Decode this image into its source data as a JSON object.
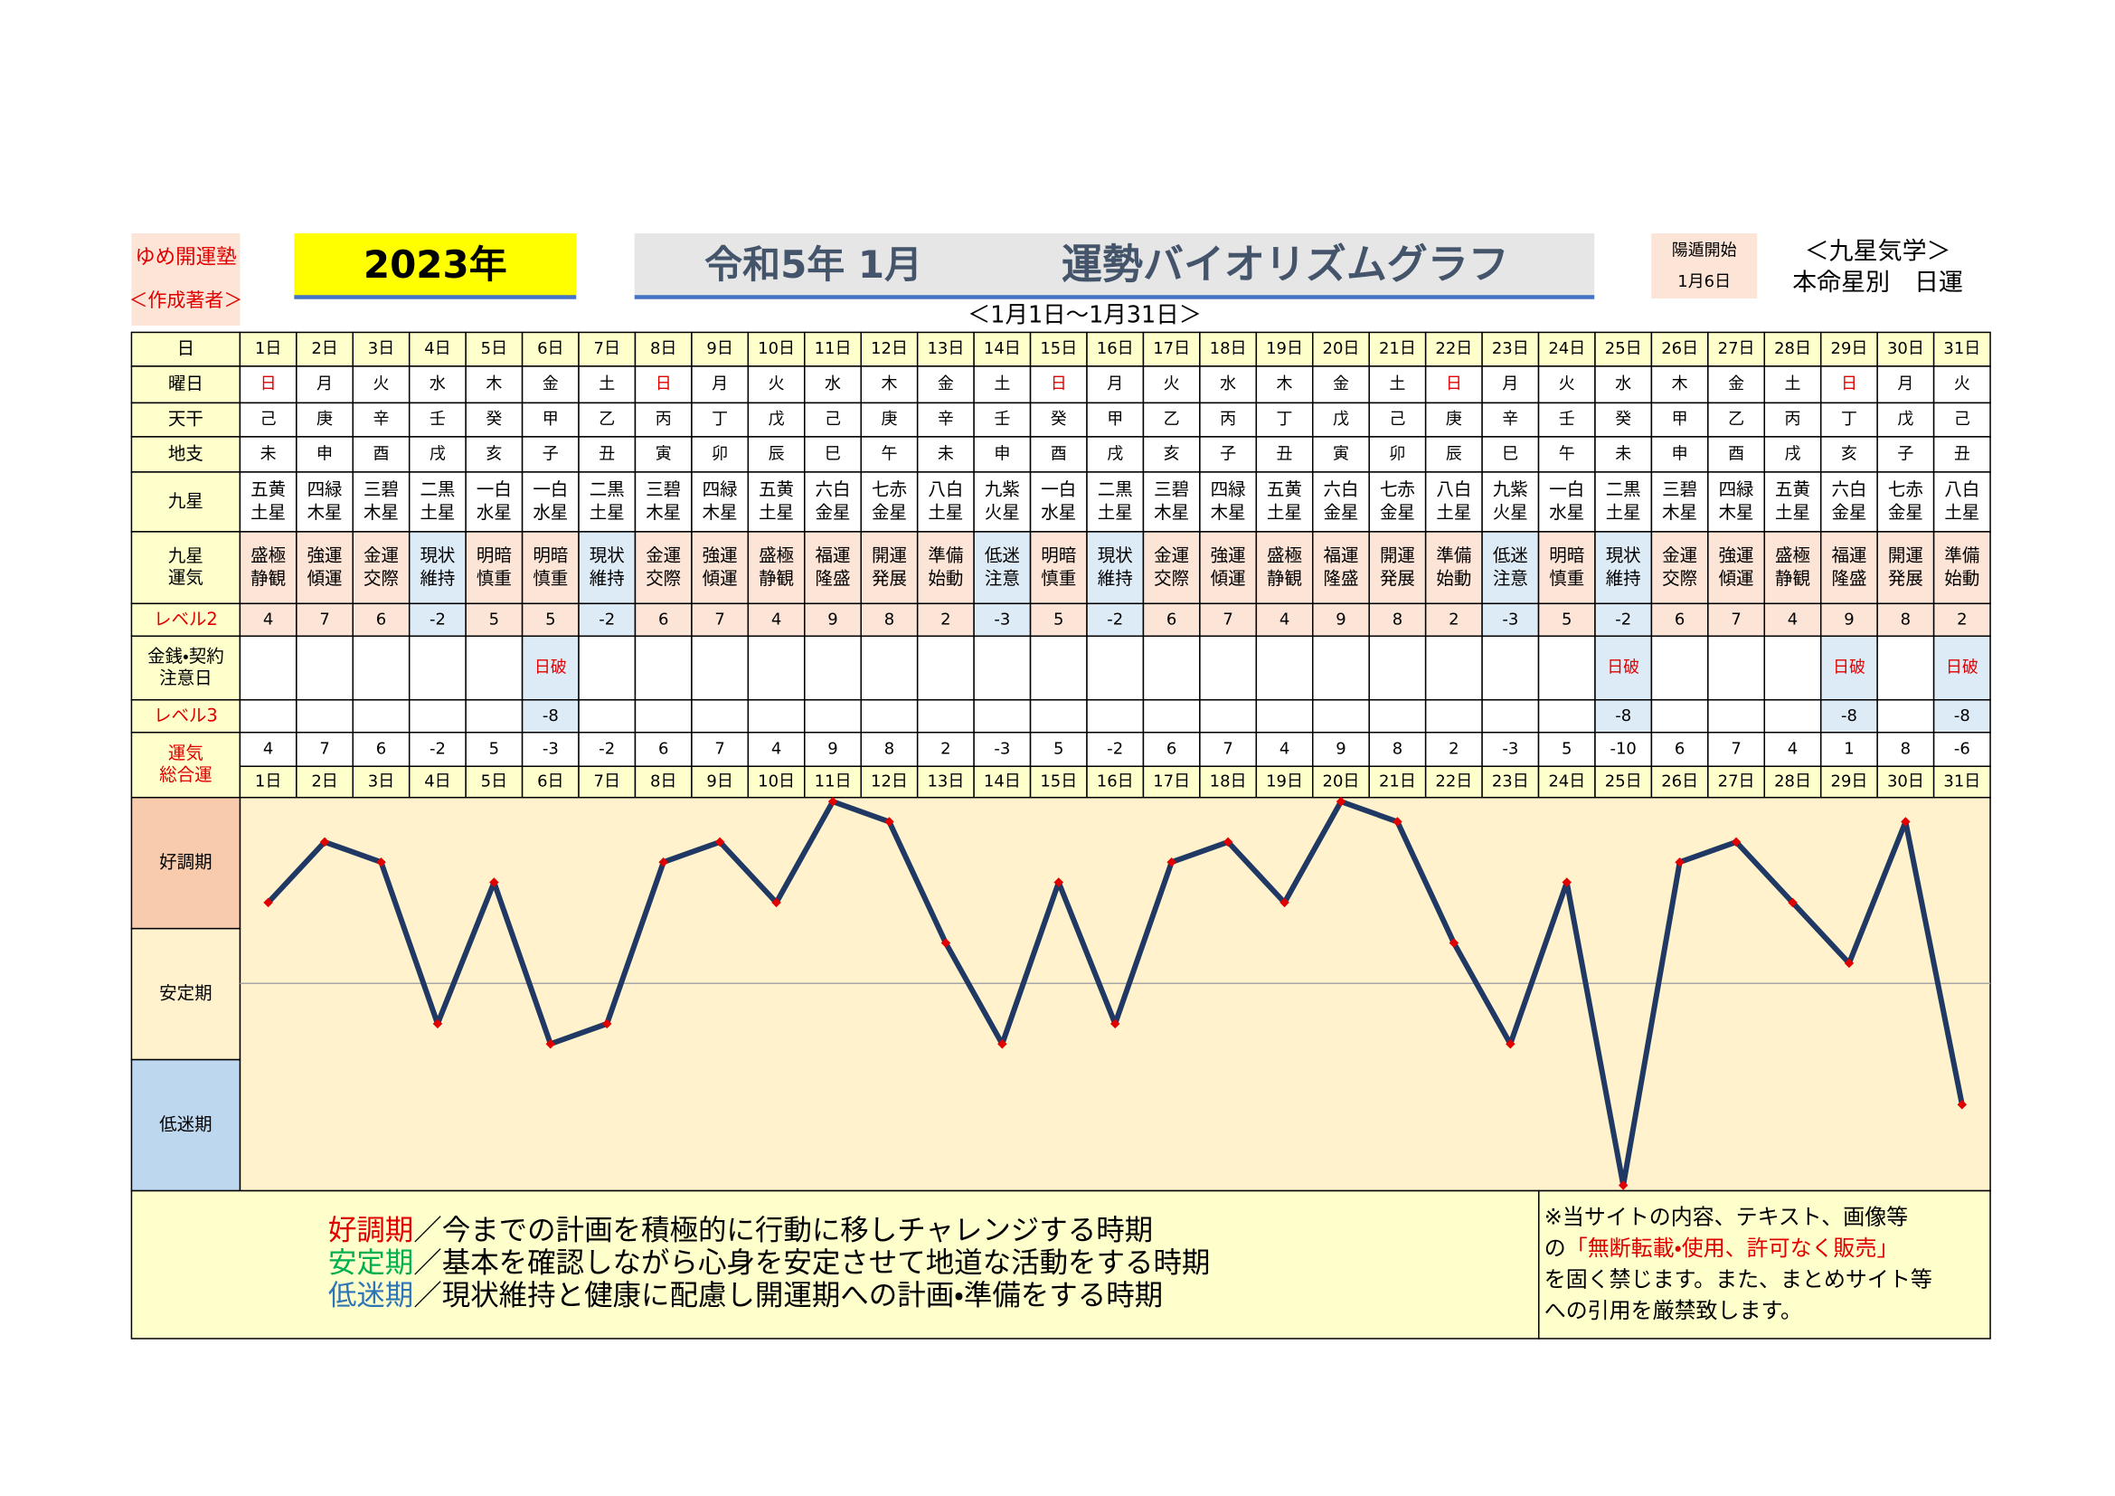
{
  "header": {
    "org": "ゆめ開運塾",
    "author": "＜作成著者＞",
    "year": "2023年",
    "title_month": "令和5年 1月",
    "title": "運勢バイオリズムグラフ",
    "period": "＜1月1日～1月31日＞",
    "start_label": "陽遁開始",
    "start_date": "1月6日",
    "system": "＜九星気学＞",
    "system_sub": "本命星別　日運"
  },
  "table": {
    "row_labels": [
      [
        "日"
      ],
      [
        "曜日"
      ],
      [
        "天干"
      ],
      [
        "地支"
      ],
      [
        "九星"
      ],
      [
        "九星",
        "運気"
      ],
      [
        "レベル2"
      ],
      [
        "金銭・契約",
        "注意日"
      ],
      [
        "レベル3"
      ],
      [
        "運気",
        "総合運"
      ]
    ],
    "days": [
      "1日",
      "2日",
      "3日",
      "4日",
      "5日",
      "6日",
      "7日",
      "8日",
      "9日",
      "10日",
      "11日",
      "12日",
      "13日",
      "14日",
      "15日",
      "16日",
      "17日",
      "18日",
      "19日",
      "20日",
      "21日",
      "22日",
      "23日",
      "24日",
      "25日",
      "26日",
      "27日",
      "28日",
      "29日",
      "30日",
      "31日"
    ],
    "weekdays": [
      "日",
      "月",
      "火",
      "水",
      "木",
      "金",
      "土",
      "日",
      "月",
      "火",
      "水",
      "木",
      "金",
      "土",
      "日",
      "月",
      "火",
      "水",
      "木",
      "金",
      "土",
      "日",
      "月",
      "火",
      "水",
      "木",
      "金",
      "土",
      "日",
      "月",
      "火"
    ],
    "stems": [
      "己",
      "庚",
      "辛",
      "壬",
      "癸",
      "甲",
      "乙",
      "丙",
      "丁",
      "戊",
      "己",
      "庚",
      "辛",
      "壬",
      "癸",
      "甲",
      "乙",
      "丙",
      "丁",
      "戊",
      "己",
      "庚",
      "辛",
      "壬",
      "癸",
      "甲",
      "乙",
      "丙",
      "丁",
      "戊",
      "己"
    ],
    "branches": [
      "未",
      "申",
      "酉",
      "戌",
      "亥",
      "子",
      "丑",
      "寅",
      "卯",
      "辰",
      "巳",
      "午",
      "未",
      "申",
      "酉",
      "戌",
      "亥",
      "子",
      "丑",
      "寅",
      "卯",
      "辰",
      "巳",
      "午",
      "未",
      "申",
      "酉",
      "戌",
      "亥",
      "子",
      "丑"
    ],
    "stars": [
      [
        "五黄",
        "土星"
      ],
      [
        "四緑",
        "木星"
      ],
      [
        "三碧",
        "木星"
      ],
      [
        "二黒",
        "土星"
      ],
      [
        "一白",
        "水星"
      ],
      [
        "一白",
        "水星"
      ],
      [
        "二黒",
        "土星"
      ],
      [
        "三碧",
        "木星"
      ],
      [
        "四緑",
        "木星"
      ],
      [
        "五黄",
        "土星"
      ],
      [
        "六白",
        "金星"
      ],
      [
        "七赤",
        "金星"
      ],
      [
        "八白",
        "土星"
      ],
      [
        "九紫",
        "火星"
      ],
      [
        "一白",
        "水星"
      ],
      [
        "二黒",
        "土星"
      ],
      [
        "三碧",
        "木星"
      ],
      [
        "四緑",
        "木星"
      ],
      [
        "五黄",
        "土星"
      ],
      [
        "六白",
        "金星"
      ],
      [
        "七赤",
        "金星"
      ],
      [
        "八白",
        "土星"
      ],
      [
        "九紫",
        "火星"
      ],
      [
        "一白",
        "水星"
      ],
      [
        "二黒",
        "土星"
      ],
      [
        "三碧",
        "木星"
      ],
      [
        "四緑",
        "木星"
      ],
      [
        "五黄",
        "土星"
      ],
      [
        "六白",
        "金星"
      ],
      [
        "七赤",
        "金星"
      ],
      [
        "八白",
        "土星"
      ]
    ],
    "fortunes": [
      [
        "盛極",
        "静観"
      ],
      [
        "強運",
        "傾運"
      ],
      [
        "金運",
        "交際"
      ],
      [
        "現状",
        "維持"
      ],
      [
        "明暗",
        "慎重"
      ],
      [
        "明暗",
        "慎重"
      ],
      [
        "現状",
        "維持"
      ],
      [
        "金運",
        "交際"
      ],
      [
        "強運",
        "傾運"
      ],
      [
        "盛極",
        "静観"
      ],
      [
        "福運",
        "隆盛"
      ],
      [
        "開運",
        "発展"
      ],
      [
        "準備",
        "始動"
      ],
      [
        "低迷",
        "注意"
      ],
      [
        "明暗",
        "慎重"
      ],
      [
        "現状",
        "維持"
      ],
      [
        "金運",
        "交際"
      ],
      [
        "強運",
        "傾運"
      ],
      [
        "盛極",
        "静観"
      ],
      [
        "福運",
        "隆盛"
      ],
      [
        "開運",
        "発展"
      ],
      [
        "準備",
        "始動"
      ],
      [
        "低迷",
        "注意"
      ],
      [
        "明暗",
        "慎重"
      ],
      [
        "現状",
        "維持"
      ],
      [
        "金運",
        "交際"
      ],
      [
        "強運",
        "傾運"
      ],
      [
        "盛極",
        "静観"
      ],
      [
        "福運",
        "隆盛"
      ],
      [
        "開運",
        "発展"
      ],
      [
        "準備",
        "始動"
      ]
    ],
    "level2": [
      4,
      7,
      6,
      -2,
      5,
      5,
      -2,
      6,
      7,
      4,
      9,
      8,
      2,
      -3,
      5,
      -2,
      6,
      7,
      4,
      9,
      8,
      2,
      -3,
      5,
      -2,
      6,
      7,
      4,
      9,
      8,
      2
    ],
    "money": [
      null,
      null,
      null,
      null,
      null,
      "日破",
      null,
      null,
      null,
      null,
      null,
      null,
      null,
      null,
      null,
      null,
      null,
      null,
      null,
      null,
      null,
      null,
      null,
      null,
      "日破",
      null,
      null,
      null,
      "日破",
      null,
      "日破"
    ],
    "level3": [
      null,
      null,
      null,
      null,
      null,
      -8,
      null,
      null,
      null,
      null,
      null,
      null,
      null,
      null,
      null,
      null,
      null,
      null,
      null,
      null,
      null,
      null,
      null,
      null,
      -8,
      null,
      null,
      null,
      -8,
      null,
      -8
    ],
    "total": [
      4,
      7,
      6,
      -2,
      5,
      -3,
      -2,
      6,
      7,
      4,
      9,
      8,
      2,
      -3,
      5,
      -2,
      6,
      7,
      4,
      9,
      8,
      2,
      -3,
      5,
      -10,
      6,
      7,
      4,
      1,
      8,
      -6
    ],
    "holiday_color": "#e00000"
  },
  "chart": {
    "type": "line",
    "ylim": [
      -10,
      9
    ],
    "line_color": "#1f3864",
    "marker_color": "#e00000",
    "zones": [
      {
        "label": "好調期",
        "color": "#f8cbad"
      },
      {
        "label": "安定期",
        "color": "#fff2cc"
      },
      {
        "label": "低迷期",
        "color": "#bdd7ee"
      }
    ]
  },
  "legend": [
    {
      "term": "好調期",
      "color": "#e00000",
      "text": "／今までの計画を積極的に行動に移しチャレンジする時期"
    },
    {
      "term": "安定期",
      "color": "#00b050",
      "text": "／基本を確認しながら心身を安定させて地道な活動をする時期"
    },
    {
      "term": "低迷期",
      "color": "#2e75b6",
      "text": "／現状維持と健康に配慮し開運期への計画・準備をする時期"
    }
  ],
  "note": [
    [
      {
        "text": "※当サイトの内容、テキスト、画像等"
      }
    ],
    [
      {
        "text": "の"
      },
      {
        "text": "「無断転載・使用、許可なく販売」",
        "color": "#e00000"
      }
    ],
    [
      {
        "text": "を固く禁じます。また、まとめサイト等"
      }
    ],
    [
      {
        "text": "への引用を厳禁致します。"
      }
    ]
  ]
}
